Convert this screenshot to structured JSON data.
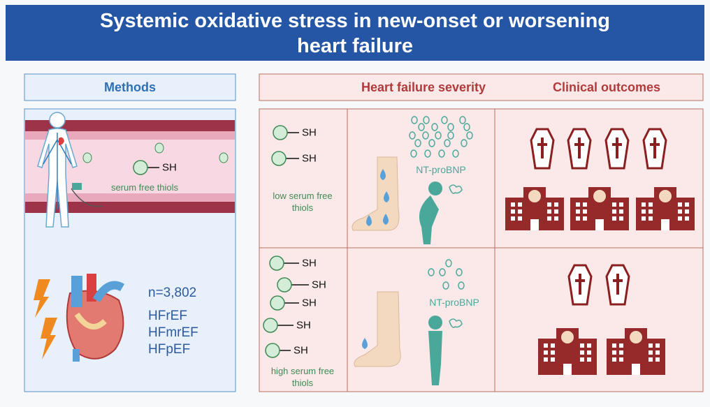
{
  "header": {
    "title": "Systemic oxidative stress in new-onset or worsening heart failure"
  },
  "methods": {
    "heading": "Methods",
    "thiol_label": "SH",
    "thiol_caption": "serum free thiols",
    "cohort": "n=3,802",
    "subtypes": [
      "HFrEF",
      "HFmrEF",
      "HFpEF"
    ]
  },
  "results": {
    "headings": [
      "Heart failure severity",
      "Clinical outcomes"
    ],
    "rows": [
      {
        "thiol_labels": [
          "SH",
          "SH"
        ],
        "thiol_caption": "low serum free thiols",
        "marker": "NT-proBNP"
      },
      {
        "thiol_labels": [
          "SH",
          "SH",
          "SH",
          "SH",
          "SH"
        ],
        "thiol_caption": "high serum free thiols",
        "marker": "NT-proBNP"
      }
    ]
  }
}
